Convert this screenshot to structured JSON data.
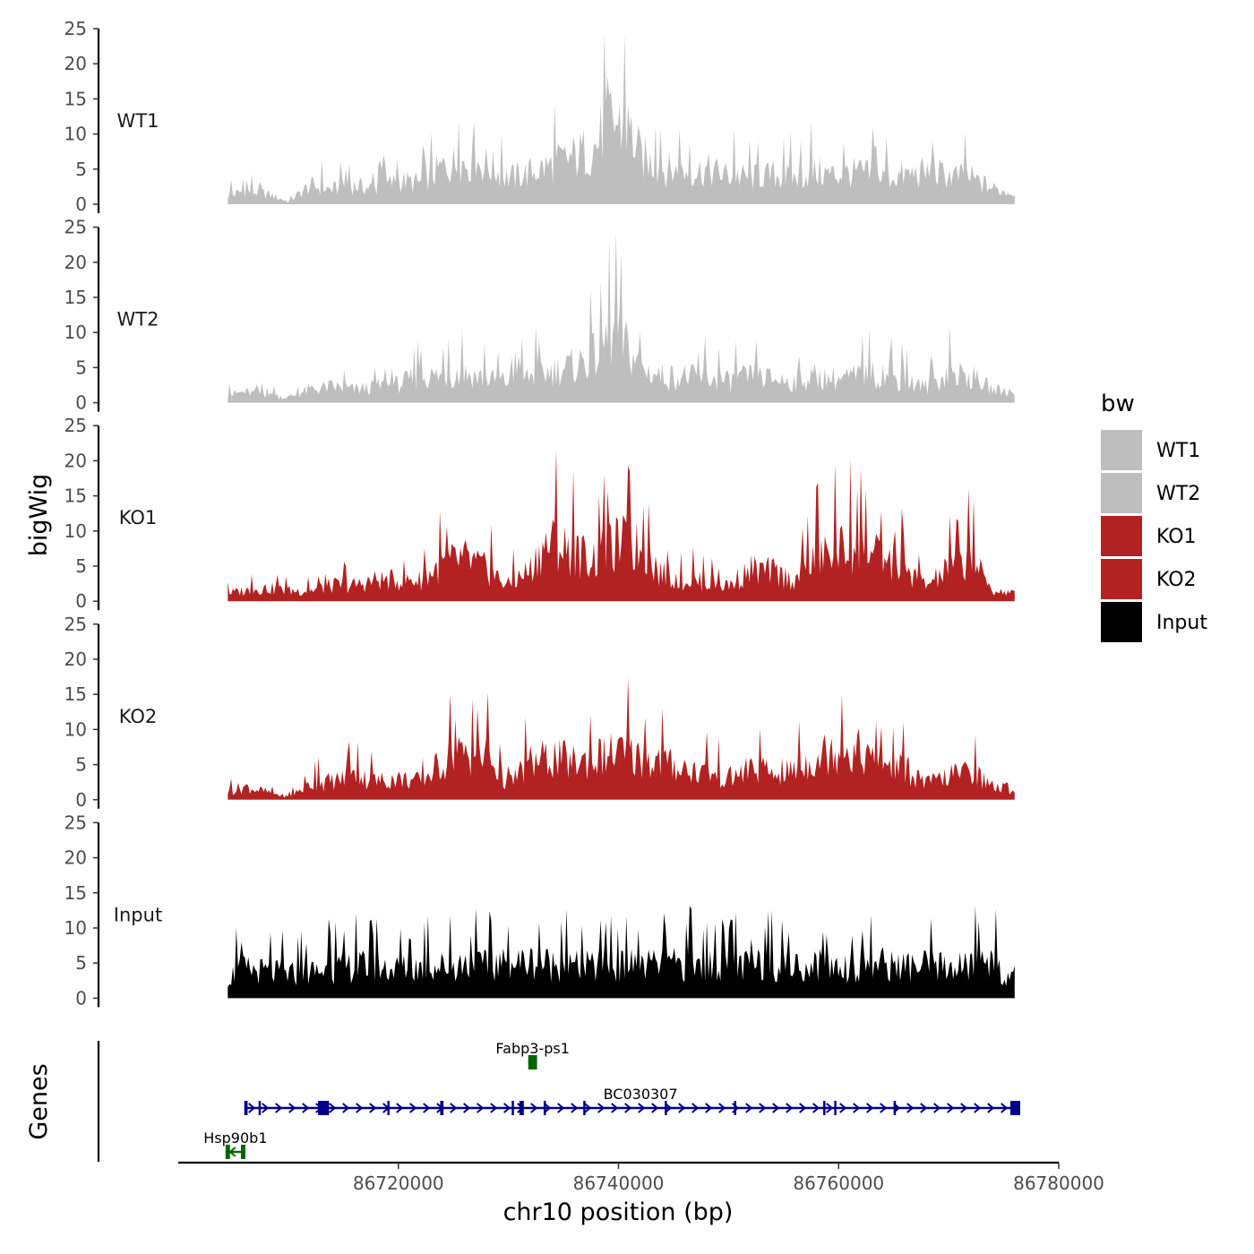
{
  "chart_data": {
    "type": "area",
    "title": "",
    "ylabel": "bigWig",
    "xlabel": "chr10 position (bp)",
    "x_range": [
      86704500,
      86776500
    ],
    "xlim": [
      86700000,
      86780000
    ],
    "x_ticks": [
      {
        "value": 86720000,
        "label": "86720000"
      },
      {
        "value": 86740000,
        "label": "86740000"
      },
      {
        "value": 86760000,
        "label": "86760000"
      },
      {
        "value": 86780000,
        "label": "86780000"
      }
    ],
    "y_ticks": [
      "0",
      "5",
      "10",
      "15",
      "20",
      "25"
    ],
    "ylim": [
      0,
      25
    ],
    "colors": {
      "WT": "#bebebe",
      "KO": "#b22222",
      "Input": "#000000",
      "gene_plus": "#00008b",
      "gene_minus": "#006400"
    },
    "series": [
      {
        "name": "WT1",
        "color": "#bebebe",
        "points": [
          [
            86704500,
            1.5
          ],
          [
            86706000,
            2.5
          ],
          [
            86708000,
            2
          ],
          [
            86710000,
            0.5
          ],
          [
            86712000,
            3.5
          ],
          [
            86714000,
            2.8
          ],
          [
            86716000,
            3.5
          ],
          [
            86718000,
            3
          ],
          [
            86720000,
            4.5
          ],
          [
            86722000,
            4
          ],
          [
            86724000,
            7
          ],
          [
            86726000,
            8
          ],
          [
            86728000,
            7.5
          ],
          [
            86730000,
            5
          ],
          [
            86732000,
            6
          ],
          [
            86734000,
            7.5
          ],
          [
            86736000,
            9
          ],
          [
            86738000,
            11
          ],
          [
            86739000,
            16
          ],
          [
            86740000,
            15
          ],
          [
            86741000,
            14
          ],
          [
            86742000,
            9
          ],
          [
            86744000,
            6.5
          ],
          [
            86746000,
            6
          ],
          [
            86748000,
            6.5
          ],
          [
            86750000,
            5.5
          ],
          [
            86752000,
            5
          ],
          [
            86754000,
            5.5
          ],
          [
            86756000,
            5
          ],
          [
            86758000,
            6
          ],
          [
            86760000,
            5.5
          ],
          [
            86762000,
            6
          ],
          [
            86764000,
            5
          ],
          [
            86766000,
            5.5
          ],
          [
            86768000,
            6
          ],
          [
            86770000,
            5.5
          ],
          [
            86772000,
            5
          ],
          [
            86774000,
            3
          ],
          [
            86776000,
            2
          ]
        ]
      },
      {
        "name": "WT2",
        "color": "#bebebe",
        "points": [
          [
            86704500,
            1.5
          ],
          [
            86706000,
            2
          ],
          [
            86708000,
            1.5
          ],
          [
            86710000,
            1
          ],
          [
            86712000,
            2.5
          ],
          [
            86714000,
            3
          ],
          [
            86716000,
            2.5
          ],
          [
            86718000,
            3
          ],
          [
            86720000,
            3.5
          ],
          [
            86722000,
            5
          ],
          [
            86724000,
            5
          ],
          [
            86726000,
            5.5
          ],
          [
            86728000,
            4.5
          ],
          [
            86730000,
            4
          ],
          [
            86732000,
            5
          ],
          [
            86734000,
            6
          ],
          [
            86736000,
            7
          ],
          [
            86738000,
            9
          ],
          [
            86739000,
            12.5
          ],
          [
            86740000,
            12
          ],
          [
            86741000,
            10
          ],
          [
            86742000,
            6.5
          ],
          [
            86744000,
            5
          ],
          [
            86746000,
            5
          ],
          [
            86748000,
            4.5
          ],
          [
            86750000,
            4
          ],
          [
            86752000,
            5
          ],
          [
            86754000,
            4.5
          ],
          [
            86756000,
            4
          ],
          [
            86758000,
            5
          ],
          [
            86760000,
            4.5
          ],
          [
            86762000,
            5
          ],
          [
            86764000,
            5.5
          ],
          [
            86766000,
            4
          ],
          [
            86768000,
            3
          ],
          [
            86770000,
            5.5
          ],
          [
            86772000,
            5
          ],
          [
            86774000,
            2.5
          ],
          [
            86776000,
            2
          ]
        ]
      },
      {
        "name": "KO1",
        "color": "#b22222",
        "points": [
          [
            86704500,
            1.5
          ],
          [
            86706000,
            2
          ],
          [
            86708000,
            2.5
          ],
          [
            86710000,
            2
          ],
          [
            86712000,
            2
          ],
          [
            86714000,
            3
          ],
          [
            86716000,
            3
          ],
          [
            86718000,
            4
          ],
          [
            86720000,
            4
          ],
          [
            86722000,
            4
          ],
          [
            86724000,
            7
          ],
          [
            86726000,
            8
          ],
          [
            86728000,
            6
          ],
          [
            86730000,
            3
          ],
          [
            86732000,
            6
          ],
          [
            86733000,
            10
          ],
          [
            86734000,
            11
          ],
          [
            86736000,
            9
          ],
          [
            86738000,
            8
          ],
          [
            86740000,
            11
          ],
          [
            86742000,
            10
          ],
          [
            86744000,
            5
          ],
          [
            86746000,
            4
          ],
          [
            86748000,
            3.5
          ],
          [
            86750000,
            3
          ],
          [
            86752000,
            6
          ],
          [
            86754000,
            5.5
          ],
          [
            86756000,
            4
          ],
          [
            86758000,
            8
          ],
          [
            86760000,
            10
          ],
          [
            86762000,
            9.5
          ],
          [
            86764000,
            8
          ],
          [
            86766000,
            6
          ],
          [
            86768000,
            3
          ],
          [
            86770000,
            6
          ],
          [
            86772000,
            8
          ],
          [
            86774000,
            2
          ],
          [
            86776000,
            1.5
          ]
        ]
      },
      {
        "name": "KO2",
        "color": "#b22222",
        "points": [
          [
            86704500,
            1.5
          ],
          [
            86706000,
            2.5
          ],
          [
            86708000,
            1.5
          ],
          [
            86710000,
            0.5
          ],
          [
            86712000,
            3
          ],
          [
            86714000,
            3.5
          ],
          [
            86716000,
            4.5
          ],
          [
            86718000,
            3.5
          ],
          [
            86720000,
            4
          ],
          [
            86722000,
            3.5
          ],
          [
            86724000,
            7
          ],
          [
            86726000,
            9
          ],
          [
            86728000,
            8
          ],
          [
            86730000,
            3
          ],
          [
            86732000,
            7
          ],
          [
            86734000,
            8
          ],
          [
            86736000,
            7
          ],
          [
            86738000,
            8
          ],
          [
            86740000,
            9
          ],
          [
            86742000,
            8
          ],
          [
            86744000,
            7
          ],
          [
            86746000,
            6
          ],
          [
            86748000,
            5
          ],
          [
            86750000,
            4
          ],
          [
            86752000,
            6
          ],
          [
            86754000,
            5
          ],
          [
            86756000,
            5.5
          ],
          [
            86758000,
            8
          ],
          [
            86760000,
            10
          ],
          [
            86762000,
            9
          ],
          [
            86764000,
            7
          ],
          [
            86766000,
            6
          ],
          [
            86768000,
            3
          ],
          [
            86770000,
            4.5
          ],
          [
            86772000,
            5.5
          ],
          [
            86774000,
            2.5
          ],
          [
            86776000,
            2
          ]
        ]
      },
      {
        "name": "Input",
        "color": "#000000",
        "points": [
          [
            86704500,
            4
          ],
          [
            86706000,
            5.5
          ],
          [
            86708000,
            5
          ],
          [
            86710000,
            4.5
          ],
          [
            86712000,
            5
          ],
          [
            86714000,
            5.5
          ],
          [
            86716000,
            6
          ],
          [
            86718000,
            6
          ],
          [
            86720000,
            5.5
          ],
          [
            86722000,
            6
          ],
          [
            86724000,
            6
          ],
          [
            86726000,
            6.5
          ],
          [
            86728000,
            6
          ],
          [
            86730000,
            6.5
          ],
          [
            86732000,
            7
          ],
          [
            86734000,
            6.5
          ],
          [
            86736000,
            6
          ],
          [
            86738000,
            6
          ],
          [
            86740000,
            6
          ],
          [
            86742000,
            6.5
          ],
          [
            86744000,
            6
          ],
          [
            86746000,
            6.5
          ],
          [
            86748000,
            6
          ],
          [
            86750000,
            6
          ],
          [
            86752000,
            6
          ],
          [
            86754000,
            6.5
          ],
          [
            86756000,
            6
          ],
          [
            86758000,
            6.5
          ],
          [
            86760000,
            6
          ],
          [
            86762000,
            6
          ],
          [
            86764000,
            6.5
          ],
          [
            86766000,
            6
          ],
          [
            86768000,
            6
          ],
          [
            86770000,
            6
          ],
          [
            86772000,
            6
          ],
          [
            86774000,
            8
          ],
          [
            86775500,
            3
          ],
          [
            86776000,
            4
          ]
        ]
      }
    ],
    "legend": {
      "title": "bw",
      "position": "right",
      "entries": [
        {
          "label": "WT1",
          "color": "#bebebe"
        },
        {
          "label": "WT2",
          "color": "#bebebe"
        },
        {
          "label": "KO1",
          "color": "#b22222"
        },
        {
          "label": "KO2",
          "color": "#b22222"
        },
        {
          "label": "Input",
          "color": "#000000"
        }
      ]
    },
    "genes_label": "Genes",
    "genes": [
      {
        "name": "Fabp3-ps1",
        "start": 86731800,
        "end": 86732600,
        "strand": "-",
        "color": "#006400",
        "row": 0,
        "exons": [
          [
            86731800,
            86732600
          ]
        ]
      },
      {
        "name": "BC030307",
        "start": 86706000,
        "end": 86776500,
        "strand": "+",
        "color": "#00008b",
        "row": 1,
        "exons": [
          [
            86706000,
            86706300
          ],
          [
            86707300,
            86707500
          ],
          [
            86712700,
            86713700
          ],
          [
            86719000,
            86719200
          ],
          [
            86723800,
            86724100
          ],
          [
            86730300,
            86730500
          ],
          [
            86731000,
            86731400
          ],
          [
            86733200,
            86733400
          ],
          [
            86736800,
            86737000
          ],
          [
            86744200,
            86744400
          ],
          [
            86750500,
            86750700
          ],
          [
            86758600,
            86758800
          ],
          [
            86759600,
            86759800
          ],
          [
            86765000,
            86765200
          ],
          [
            86775600,
            86776500
          ]
        ]
      },
      {
        "name": "Hsp90b1",
        "start": 86704300,
        "end": 86706100,
        "strand": "-",
        "color": "#006400",
        "row": 2,
        "exons": [
          [
            86704300,
            86704700
          ],
          [
            86705700,
            86706100
          ]
        ]
      }
    ]
  }
}
